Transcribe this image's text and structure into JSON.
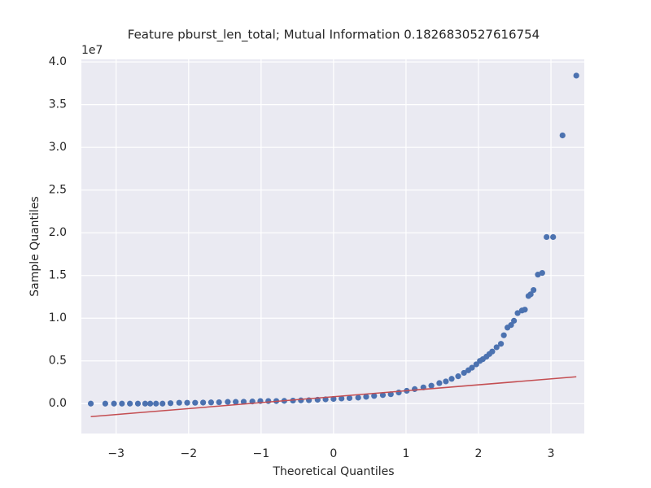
{
  "chart_data": {
    "type": "scatter",
    "title": "Feature pburst_len_total; Mutual Information 0.1826830527616754",
    "xlabel": "Theoretical Quantiles",
    "ylabel": "Sample Quantiles",
    "y_offset_label": "1e7",
    "xlim": [
      -3.48,
      3.46
    ],
    "ylim": [
      -0.35,
      4.03
    ],
    "xticks": [
      {
        "value": -3,
        "label": "−3"
      },
      {
        "value": -2,
        "label": "−2"
      },
      {
        "value": -1,
        "label": "−1"
      },
      0,
      1,
      2,
      3
    ],
    "yticks": [
      {
        "value": 0,
        "label": "0.0"
      },
      0.5,
      {
        "value": 1,
        "label": "1.0"
      },
      1.5,
      {
        "value": 2,
        "label": "2.0"
      },
      2.5,
      {
        "value": 3,
        "label": "3.0"
      },
      3.5,
      {
        "value": 4,
        "label": "4.0"
      }
    ],
    "grid": true,
    "series": [
      {
        "mode": "markers",
        "color": "#4c72b0",
        "x": [
          -3.35,
          -3.15,
          -3.03,
          -2.92,
          -2.81,
          -2.7,
          -2.6,
          -2.53,
          -2.45,
          -2.36,
          -2.25,
          -2.13,
          -2.02,
          -1.91,
          -1.8,
          -1.69,
          -1.58,
          -1.46,
          -1.35,
          -1.24,
          -1.12,
          -1.01,
          -0.9,
          -0.79,
          -0.68,
          -0.56,
          -0.45,
          -0.34,
          -0.22,
          -0.11,
          0.0,
          0.11,
          0.22,
          0.34,
          0.45,
          0.56,
          0.68,
          0.79,
          0.9,
          1.01,
          1.12,
          1.24,
          1.35,
          1.46,
          1.55,
          1.63,
          1.72,
          1.8,
          1.86,
          1.91,
          1.97,
          2.02,
          2.06,
          2.11,
          2.15,
          2.19,
          2.25,
          2.31,
          2.35,
          2.4,
          2.45,
          2.49,
          2.54,
          2.6,
          2.64,
          2.69,
          2.72,
          2.76,
          2.82,
          2.88,
          2.94,
          3.03,
          3.16,
          3.35
        ],
        "values": [
          0,
          0,
          0,
          0,
          0,
          0,
          0,
          0,
          0,
          0,
          0.005,
          0.01,
          0.01,
          0.01,
          0.012,
          0.014,
          0.016,
          0.02,
          0.02,
          0.022,
          0.025,
          0.03,
          0.03,
          0.03,
          0.032,
          0.035,
          0.038,
          0.04,
          0.045,
          0.05,
          0.055,
          0.06,
          0.065,
          0.07,
          0.08,
          0.09,
          0.1,
          0.11,
          0.13,
          0.15,
          0.17,
          0.19,
          0.21,
          0.24,
          0.26,
          0.29,
          0.32,
          0.36,
          0.39,
          0.42,
          0.46,
          0.5,
          0.52,
          0.55,
          0.58,
          0.61,
          0.66,
          0.7,
          0.8,
          0.89,
          0.92,
          0.97,
          1.06,
          1.09,
          1.1,
          1.26,
          1.28,
          1.33,
          1.51,
          1.53,
          1.95,
          1.95,
          3.14,
          3.84
        ]
      },
      {
        "mode": "line",
        "color": "#c44e52",
        "x": [
          -3.35,
          3.35
        ],
        "values": [
          -0.152,
          0.314
        ]
      }
    ]
  }
}
